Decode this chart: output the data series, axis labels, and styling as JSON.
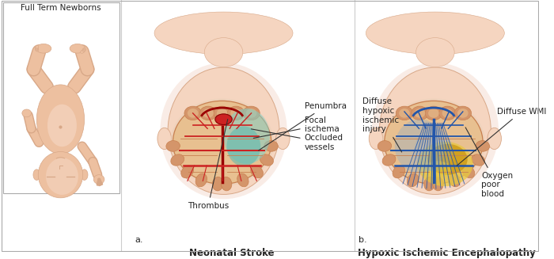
{
  "title_left": "Neonatal Stroke",
  "title_right": "Hypoxic Ischemic Encephalopathy",
  "label_full_term": "Full Term Newborns",
  "label_a": "a.",
  "label_b": "b.",
  "annotations_left": [
    "Penumbra",
    "Focal\nischema",
    "Occluded\nvessels",
    "Thrombus"
  ],
  "annotations_right": [
    "Diffuse\nhypoxic\nischemic\ninjury",
    "Diffuse WMI",
    "Oxygen\npoor\nblood"
  ],
  "bg_color": "#ffffff",
  "skin_color": "#f5d5c0",
  "skin_mid": "#edc0a0",
  "skin_dark": "#d8a888",
  "skin_shadow": "#e8c0a8",
  "brain_base": "#d4956a",
  "brain_light": "#e8c090",
  "brain_mid": "#c88050",
  "penumbra_color": "#50b8b0",
  "penumbra_light": "#80d0c8",
  "thrombus_color": "#cc2222",
  "vessel_color_dark": "#990000",
  "vessel_color": "#cc2222",
  "wmi_color": "#c8920a",
  "wmi_light": "#e8c840",
  "blue_vessel_color": "#2255aa",
  "blue_light": "#88aacc",
  "border_color": "#999999",
  "text_color": "#222222",
  "box_border": "#aaaaaa"
}
